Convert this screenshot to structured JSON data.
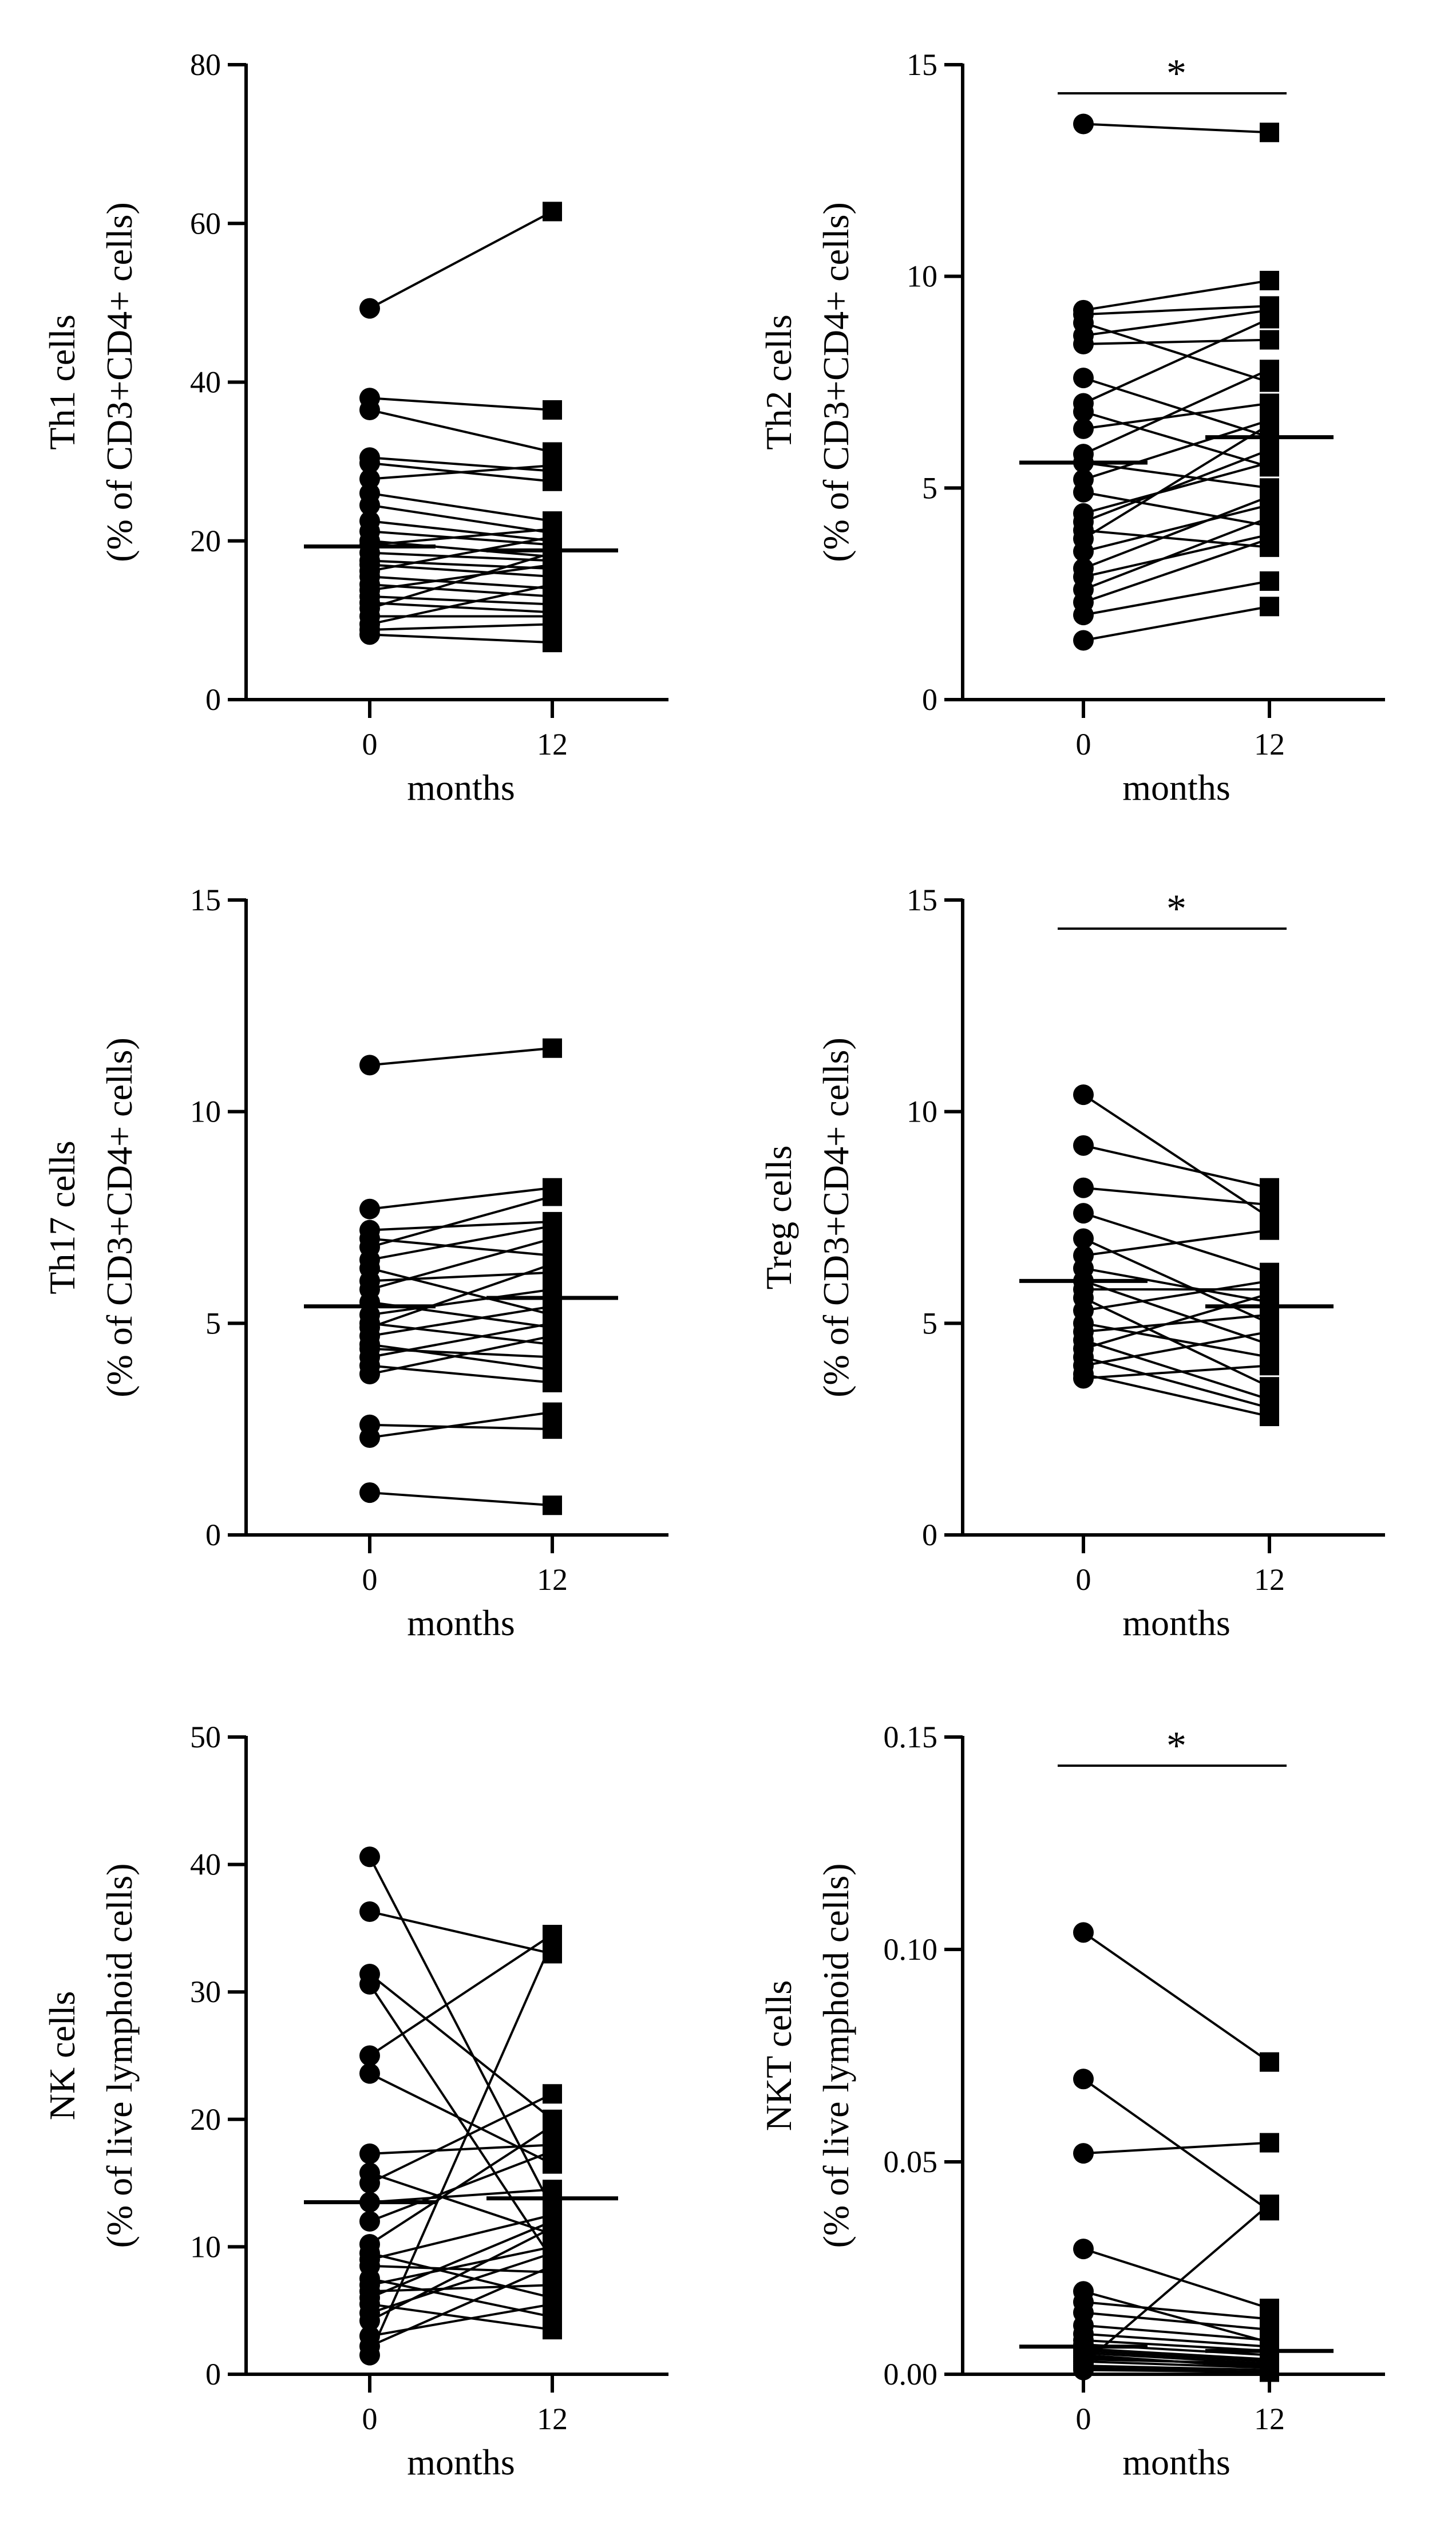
{
  "chart_data": [
    {
      "type": "scatter",
      "ylabel_line1": "Th1 cells",
      "ylabel_line2": "(%  of  CD3+CD4+ cells)",
      "xlabel": "months",
      "categories": [
        "0",
        "12"
      ],
      "ylim": [
        0,
        80
      ],
      "yticks": [
        0,
        20,
        40,
        60,
        80
      ],
      "yticklabels": [
        "0",
        "20",
        "40",
        "60",
        "80"
      ],
      "significance": "",
      "medians": [
        19.3,
        18.8
      ],
      "pairs": [
        [
          49.3,
          61.5
        ],
        [
          38.0,
          36.5
        ],
        [
          36.5,
          31.2
        ],
        [
          30.5,
          28.8
        ],
        [
          29.8,
          27.5
        ],
        [
          27.8,
          29.5
        ],
        [
          26.0,
          22.5
        ],
        [
          24.5,
          21.0
        ],
        [
          22.5,
          20.0
        ],
        [
          21.2,
          19.5
        ],
        [
          20.0,
          18.0
        ],
        [
          19.5,
          21.5
        ],
        [
          18.5,
          17.5
        ],
        [
          17.5,
          16.5
        ],
        [
          17.0,
          15.5
        ],
        [
          16.2,
          20.5
        ],
        [
          15.5,
          14.0
        ],
        [
          14.5,
          13.0
        ],
        [
          13.8,
          17.0
        ],
        [
          13.0,
          12.0
        ],
        [
          12.2,
          11.0
        ],
        [
          11.5,
          18.5
        ],
        [
          10.5,
          10.5
        ],
        [
          9.5,
          14.5
        ],
        [
          8.8,
          9.5
        ],
        [
          8.2,
          7.2
        ]
      ]
    },
    {
      "type": "scatter",
      "ylabel_line1": "Th2 cells",
      "ylabel_line2": "(%  of  CD3+CD4+ cells)",
      "xlabel": "months",
      "categories": [
        "0",
        "12"
      ],
      "ylim": [
        0,
        15
      ],
      "yticks": [
        0,
        5,
        10,
        15
      ],
      "yticklabels": [
        "0",
        "5",
        "10",
        "15"
      ],
      "significance": "*",
      "medians": [
        5.6,
        6.2
      ],
      "pairs": [
        [
          13.6,
          13.4
        ],
        [
          9.2,
          9.9
        ],
        [
          9.1,
          9.3
        ],
        [
          8.9,
          7.5
        ],
        [
          8.6,
          9.2
        ],
        [
          8.4,
          8.5
        ],
        [
          7.6,
          6.2
        ],
        [
          7.0,
          9.0
        ],
        [
          6.8,
          5.5
        ],
        [
          6.4,
          7.0
        ],
        [
          5.8,
          7.8
        ],
        [
          5.6,
          5.0
        ],
        [
          5.2,
          6.6
        ],
        [
          4.9,
          4.1
        ],
        [
          4.4,
          5.6
        ],
        [
          4.2,
          5.9
        ],
        [
          4.0,
          3.6
        ],
        [
          3.8,
          6.5
        ],
        [
          3.5,
          4.6
        ],
        [
          3.1,
          4.8
        ],
        [
          2.9,
          3.9
        ],
        [
          2.6,
          4.3
        ],
        [
          2.3,
          3.8
        ],
        [
          2.0,
          2.8
        ],
        [
          1.4,
          2.2
        ]
      ]
    },
    {
      "type": "scatter",
      "ylabel_line1": "Th17 cells",
      "ylabel_line2": "(%  of  CD3+CD4+ cells)",
      "xlabel": "months",
      "categories": [
        "0",
        "12"
      ],
      "ylim": [
        0,
        15
      ],
      "yticks": [
        0,
        5,
        10,
        15
      ],
      "yticklabels": [
        "0",
        "5",
        "10",
        "15"
      ],
      "significance": "",
      "medians": [
        5.4,
        5.6
      ],
      "pairs": [
        [
          11.1,
          11.5
        ],
        [
          7.7,
          8.2
        ],
        [
          7.2,
          7.4
        ],
        [
          7.0,
          6.6
        ],
        [
          6.8,
          8.0
        ],
        [
          6.5,
          7.3
        ],
        [
          6.3,
          5.2
        ],
        [
          6.0,
          6.2
        ],
        [
          5.8,
          7.0
        ],
        [
          5.5,
          4.9
        ],
        [
          5.2,
          5.8
        ],
        [
          5.0,
          4.5
        ],
        [
          4.9,
          6.4
        ],
        [
          4.7,
          5.4
        ],
        [
          4.5,
          3.9
        ],
        [
          4.4,
          4.2
        ],
        [
          4.2,
          5.0
        ],
        [
          4.0,
          3.6
        ],
        [
          3.8,
          4.7
        ],
        [
          2.6,
          2.5
        ],
        [
          2.3,
          2.9
        ],
        [
          1.0,
          0.7
        ]
      ]
    },
    {
      "type": "scatter",
      "ylabel_line1": "Treg cells",
      "ylabel_line2": "(%  of  CD3+CD4+ cells)",
      "xlabel": "months",
      "categories": [
        "0",
        "12"
      ],
      "ylim": [
        0,
        15
      ],
      "yticks": [
        0,
        5,
        10,
        15
      ],
      "yticklabels": [
        "0",
        "5",
        "10",
        "15"
      ],
      "significance": "*",
      "medians": [
        6.0,
        5.4
      ],
      "pairs": [
        [
          10.4,
          7.5
        ],
        [
          9.2,
          8.2
        ],
        [
          8.2,
          7.8
        ],
        [
          7.6,
          6.2
        ],
        [
          7.0,
          5.0
        ],
        [
          6.6,
          7.2
        ],
        [
          6.3,
          5.5
        ],
        [
          6.0,
          4.5
        ],
        [
          5.8,
          5.8
        ],
        [
          5.6,
          3.5
        ],
        [
          5.3,
          6.0
        ],
        [
          5.0,
          4.2
        ],
        [
          4.8,
          5.2
        ],
        [
          4.6,
          3.2
        ],
        [
          4.4,
          5.7
        ],
        [
          4.2,
          3.0
        ],
        [
          4.0,
          4.8
        ],
        [
          3.8,
          2.8
        ],
        [
          3.7,
          4.0
        ]
      ]
    },
    {
      "type": "scatter",
      "ylabel_line1": "NK cells",
      "ylabel_line2": "(%  of  live lymphoid cells)",
      "xlabel": "months",
      "categories": [
        "0",
        "12"
      ],
      "ylim": [
        0,
        50
      ],
      "yticks": [
        0,
        10,
        20,
        30,
        40,
        50
      ],
      "yticklabels": [
        "0",
        "10",
        "20",
        "30",
        "40",
        "50"
      ],
      "significance": "",
      "medians": [
        13.5,
        13.8
      ],
      "pairs": [
        [
          40.6,
          13.0
        ],
        [
          36.3,
          33.0
        ],
        [
          31.4,
          20.0
        ],
        [
          30.6,
          9.0
        ],
        [
          25.0,
          34.5
        ],
        [
          23.6,
          16.5
        ],
        [
          17.3,
          18.0
        ],
        [
          15.8,
          11.0
        ],
        [
          15.0,
          22.0
        ],
        [
          13.5,
          14.5
        ],
        [
          12.0,
          17.5
        ],
        [
          10.2,
          19.5
        ],
        [
          9.5,
          6.0
        ],
        [
          9.0,
          12.5
        ],
        [
          8.5,
          8.0
        ],
        [
          7.5,
          4.5
        ],
        [
          7.0,
          10.0
        ],
        [
          6.5,
          7.0
        ],
        [
          6.0,
          12.0
        ],
        [
          5.5,
          3.5
        ],
        [
          4.8,
          9.5
        ],
        [
          4.2,
          11.5
        ],
        [
          3.0,
          5.5
        ],
        [
          2.2,
          8.5
        ],
        [
          1.5,
          34.0
        ]
      ]
    },
    {
      "type": "scatter",
      "ylabel_line1": "NKT cells",
      "ylabel_line2": "(%  of  live lymphoid cells)",
      "xlabel": "months",
      "categories": [
        "0",
        "12"
      ],
      "ylim": [
        0,
        0.15
      ],
      "yticks": [
        0,
        0.05,
        0.1,
        0.15
      ],
      "yticklabels": [
        "0.00",
        "0.05",
        "0.10",
        "0.15"
      ],
      "significance": "*",
      "medians": [
        0.0065,
        0.0055
      ],
      "pairs": [
        [
          0.104,
          0.0735
        ],
        [
          0.0695,
          0.0385
        ],
        [
          0.052,
          0.0545
        ],
        [
          0.0295,
          0.0155
        ],
        [
          0.0195,
          0.0075
        ],
        [
          0.017,
          0.013
        ],
        [
          0.0145,
          0.0105
        ],
        [
          0.0115,
          0.008
        ],
        [
          0.0095,
          0.0065
        ],
        [
          0.008,
          0.0055
        ],
        [
          0.007,
          0.0045
        ],
        [
          0.006,
          0.0035
        ],
        [
          0.005,
          0.0025
        ],
        [
          0.004,
          0.002
        ],
        [
          0.003,
          0.0015
        ],
        [
          0.002,
          0.001
        ],
        [
          0.0015,
          0.0005
        ],
        [
          0.001,
          0.0005
        ],
        [
          0.0025,
          0.04
        ],
        [
          0.0055,
          0.003
        ],
        [
          0.0035,
          0.0025
        ],
        [
          0.0045,
          0.0015
        ]
      ]
    }
  ]
}
